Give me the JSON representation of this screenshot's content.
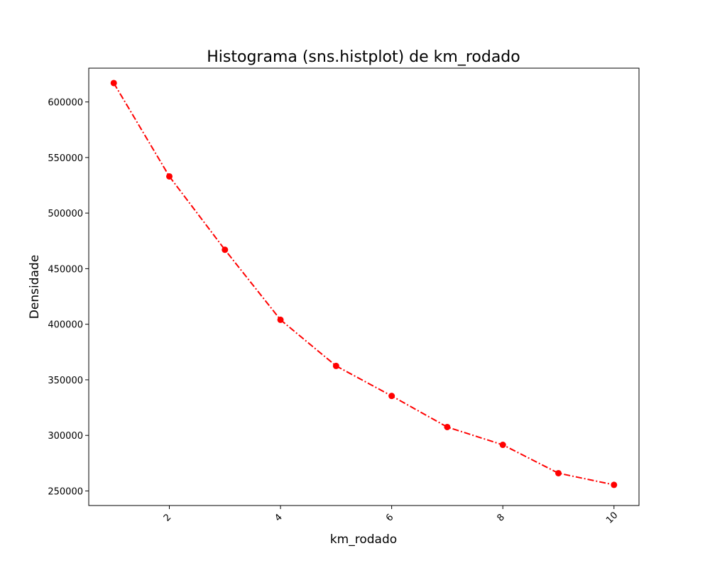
{
  "chart_data": {
    "type": "line",
    "title": "Histograma (sns.histplot) de km_rodado",
    "xlabel": "km_rodado",
    "ylabel": "Densidade",
    "xlim": [
      0.55,
      10.45
    ],
    "ylim": [
      236900,
      630400
    ],
    "x_ticks": [
      2,
      4,
      6,
      8,
      10
    ],
    "x_tick_labels": [
      "2",
      "4",
      "6",
      "8",
      "10"
    ],
    "y_ticks": [
      250000,
      300000,
      350000,
      400000,
      450000,
      500000,
      550000,
      600000
    ],
    "y_tick_labels": [
      "250000",
      "300000",
      "350000",
      "400000",
      "450000",
      "500000",
      "550000",
      "600000"
    ],
    "x_tick_rotation_deg": 45,
    "grid": false,
    "legend": "none",
    "series": [
      {
        "color": "#ff0000",
        "line_style": "dash-dot",
        "marker": "circle",
        "x": [
          1,
          2,
          3,
          4,
          5,
          6,
          7,
          8,
          9,
          10
        ],
        "y": [
          617000,
          533000,
          467000,
          404000,
          362500,
          335500,
          307500,
          291500,
          266000,
          255500
        ]
      }
    ]
  }
}
